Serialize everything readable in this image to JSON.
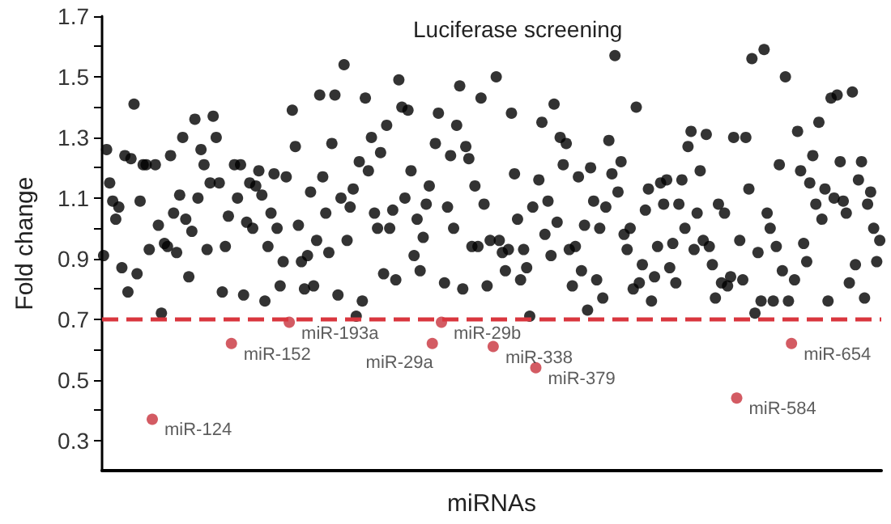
{
  "chart_data": {
    "type": "scatter",
    "title": "Luciferase screening",
    "xlabel": "miRNAs",
    "ylabel": "Fold change",
    "marker": "circle",
    "grid": false,
    "ylim": [
      0.2,
      1.7
    ],
    "yticks": [
      {
        "value": 0.3,
        "label": "0.3"
      },
      {
        "value": 0.4,
        "label": null
      },
      {
        "value": 0.5,
        "label": "0.5"
      },
      {
        "value": 0.6,
        "label": null
      },
      {
        "value": 0.7,
        "label": "0.7"
      },
      {
        "value": 0.8,
        "label": null
      },
      {
        "value": 0.9,
        "label": "0.9"
      },
      {
        "value": 1.0,
        "label": null
      },
      {
        "value": 1.1,
        "label": "1.1"
      },
      {
        "value": 1.2,
        "label": null
      },
      {
        "value": 1.3,
        "label": "1.3"
      },
      {
        "value": 1.4,
        "label": null
      },
      {
        "value": 1.5,
        "label": "1.5"
      },
      {
        "value": 1.6,
        "label": null
      },
      {
        "value": 1.7,
        "label": "1.7"
      }
    ],
    "categories": [
      null,
      null,
      null,
      null,
      null,
      null,
      null,
      null,
      null,
      null,
      null,
      null,
      null,
      null,
      null,
      null,
      null,
      null,
      null,
      null,
      null,
      null,
      null,
      null,
      null,
      null,
      null,
      null,
      null,
      null,
      null,
      null,
      null,
      null,
      null,
      null,
      null,
      null,
      null,
      null,
      null,
      null,
      null,
      null,
      null,
      null,
      null,
      null,
      null,
      null,
      null,
      null,
      null,
      null,
      null,
      null,
      null,
      null,
      null,
      null,
      null,
      null,
      null,
      null,
      null,
      null,
      null,
      null,
      null,
      null,
      null,
      null,
      null,
      null,
      null,
      null,
      null,
      null,
      null,
      null,
      null,
      null,
      null,
      null,
      null,
      null,
      null,
      null,
      null,
      null,
      null,
      null,
      null,
      null,
      null,
      null,
      null,
      null,
      null,
      null,
      null,
      null,
      null,
      null,
      null,
      null,
      null,
      null,
      null,
      null,
      null,
      null,
      null,
      null,
      null,
      null,
      null,
      null,
      null,
      null,
      null,
      null,
      null,
      null,
      null,
      null,
      null,
      null,
      null,
      null,
      null,
      null,
      null,
      null,
      null,
      null,
      null,
      null,
      null,
      null,
      null,
      null,
      null,
      null,
      null,
      null,
      null,
      null,
      null,
      null,
      null,
      null,
      null,
      null,
      null,
      null,
      null,
      null,
      null,
      null,
      null,
      null,
      null,
      null,
      null,
      null,
      null,
      null,
      null,
      null,
      null,
      null,
      null,
      null,
      null,
      null,
      null,
      null,
      null,
      null,
      null,
      null,
      null,
      null,
      null,
      null,
      null,
      null,
      null,
      null,
      null,
      null,
      null,
      null,
      null,
      null,
      null,
      null,
      null,
      null,
      null,
      null,
      null,
      null,
      null,
      null,
      null,
      null,
      null,
      null,
      null,
      null,
      null,
      null,
      null,
      null,
      null,
      null,
      null,
      null,
      null,
      null,
      null,
      null,
      null,
      null,
      null,
      null,
      null,
      null,
      null,
      null,
      null,
      null,
      null,
      null,
      null,
      null,
      null,
      null,
      null,
      null,
      null,
      null,
      null,
      null,
      null,
      null,
      null,
      null,
      null,
      null,
      null,
      null,
      null,
      null
    ],
    "series": [
      {
        "color": "#000000",
        "values": [
          0.91,
          1.26,
          1.15,
          1.09,
          1.03,
          1.07,
          0.87,
          1.24,
          0.79,
          1.23,
          1.41,
          0.85,
          1.09,
          1.21,
          1.21,
          0.93,
          null,
          1.21,
          1.01,
          0.72,
          0.95,
          0.94,
          1.24,
          1.05,
          0.92,
          1.11,
          1.3,
          1.03,
          0.84,
          0.99,
          1.36,
          1.1,
          1.26,
          1.21,
          0.93,
          1.15,
          1.37,
          1.3,
          1.15,
          0.79,
          0.94,
          1.04,
          null,
          1.21,
          1.1,
          1.21,
          0.78,
          1.02,
          1.15,
          1.0,
          1.14,
          1.19,
          1.11,
          0.76,
          0.94,
          1.05,
          1.18,
          1.0,
          0.81,
          0.89,
          1.17,
          null,
          1.39,
          1.27,
          1.01,
          0.89,
          0.8,
          0.91,
          1.12,
          0.81,
          0.96,
          1.44,
          1.17,
          1.05,
          0.92,
          1.28,
          1.44,
          0.78,
          1.1,
          1.54,
          0.96,
          1.07,
          1.13,
          0.71,
          1.22,
          0.76,
          1.43,
          1.19,
          1.3,
          1.05,
          1.0,
          1.25,
          0.85,
          1.34,
          1.0,
          1.06,
          0.83,
          1.49,
          1.4,
          1.1,
          1.39,
          1.19,
          0.91,
          1.03,
          0.86,
          0.97,
          1.08,
          1.14,
          null,
          1.28,
          1.38,
          null,
          0.82,
          1.07,
          1.24,
          1.0,
          1.34,
          1.47,
          0.8,
          1.27,
          1.23,
          0.94,
          1.14,
          0.94,
          1.43,
          1.08,
          0.81,
          0.96,
          null,
          1.5,
          0.96,
          0.92,
          0.86,
          0.93,
          1.38,
          1.18,
          1.03,
          0.83,
          0.93,
          0.87,
          0.71,
          1.07,
          null,
          1.16,
          1.35,
          0.98,
          1.09,
          0.91,
          1.41,
          1.02,
          1.3,
          1.21,
          1.28,
          0.93,
          0.81,
          0.94,
          1.17,
          0.86,
          1.01,
          0.73,
          1.2,
          1.09,
          0.83,
          1.0,
          0.77,
          1.07,
          1.29,
          1.18,
          1.57,
          1.12,
          1.22,
          0.98,
          0.93,
          1.0,
          0.8,
          1.4,
          0.82,
          0.88,
          1.06,
          1.13,
          0.76,
          0.84,
          0.94,
          1.15,
          1.08,
          1.16,
          0.87,
          0.95,
          0.82,
          1.08,
          1.16,
          1.0,
          1.27,
          1.32,
          0.93,
          1.05,
          1.19,
          0.96,
          1.31,
          0.94,
          0.88,
          0.77,
          1.08,
          0.82,
          1.05,
          0.81,
          0.84,
          1.3,
          null,
          0.96,
          0.83,
          1.3,
          1.13,
          1.56,
          0.72,
          0.92,
          0.76,
          1.59,
          1.05,
          1.0,
          0.76,
          0.94,
          1.21,
          0.86,
          1.5,
          0.76,
          null,
          0.83,
          1.32,
          1.19,
          0.95,
          0.89,
          1.15,
          1.24,
          1.08,
          1.35,
          1.03,
          1.13,
          0.76,
          1.43,
          1.1,
          1.44,
          1.22,
          1.09,
          1.05,
          0.82,
          1.45,
          0.88,
          1.16,
          1.22,
          0.77,
          1.08,
          1.12,
          1.0,
          0.89,
          0.96
        ]
      },
      {
        "color": "#c8323c",
        "values": [
          null,
          null,
          null,
          null,
          null,
          null,
          null,
          null,
          null,
          null,
          null,
          null,
          null,
          null,
          null,
          null,
          0.37,
          null,
          null,
          null,
          null,
          null,
          null,
          null,
          null,
          null,
          null,
          null,
          null,
          null,
          null,
          null,
          null,
          null,
          null,
          null,
          null,
          null,
          null,
          null,
          null,
          null,
          0.62,
          null,
          null,
          null,
          null,
          null,
          null,
          null,
          null,
          null,
          null,
          null,
          null,
          null,
          null,
          null,
          null,
          null,
          null,
          0.69,
          null,
          null,
          null,
          null,
          null,
          null,
          null,
          null,
          null,
          null,
          null,
          null,
          null,
          null,
          null,
          null,
          null,
          null,
          null,
          null,
          null,
          null,
          null,
          null,
          null,
          null,
          null,
          null,
          null,
          null,
          null,
          null,
          null,
          null,
          null,
          null,
          null,
          null,
          null,
          null,
          null,
          null,
          null,
          null,
          null,
          null,
          0.62,
          null,
          null,
          0.69,
          null,
          null,
          null,
          null,
          null,
          null,
          null,
          null,
          null,
          null,
          null,
          null,
          null,
          null,
          null,
          null,
          0.61,
          null,
          null,
          null,
          null,
          null,
          null,
          null,
          null,
          null,
          null,
          null,
          null,
          null,
          0.54,
          null,
          null,
          null,
          null,
          null,
          null,
          null,
          null,
          null,
          null,
          null,
          null,
          null,
          null,
          null,
          null,
          null,
          null,
          null,
          null,
          null,
          null,
          null,
          null,
          null,
          null,
          null,
          null,
          null,
          null,
          null,
          null,
          null,
          null,
          null,
          null,
          null,
          null,
          null,
          null,
          null,
          null,
          null,
          null,
          null,
          null,
          null,
          null,
          null,
          null,
          null,
          null,
          null,
          null,
          null,
          null,
          null,
          null,
          null,
          null,
          null,
          null,
          null,
          null,
          null,
          0.44,
          null,
          null,
          null,
          null,
          null,
          null,
          null,
          null,
          null,
          null,
          null,
          null,
          null,
          null,
          null,
          null,
          null,
          0.62,
          null,
          null,
          null,
          null,
          null,
          null,
          null,
          null,
          null,
          null,
          null,
          null,
          null,
          null,
          null,
          null,
          null,
          null,
          null,
          null,
          null,
          null,
          null,
          null,
          null,
          null,
          null,
          null,
          null
        ],
        "value_labels": [
          null,
          null,
          null,
          null,
          null,
          null,
          null,
          null,
          null,
          null,
          null,
          null,
          null,
          null,
          null,
          null,
          "miR-124",
          null,
          null,
          null,
          null,
          null,
          null,
          null,
          null,
          null,
          null,
          null,
          null,
          null,
          null,
          null,
          null,
          null,
          null,
          null,
          null,
          null,
          null,
          null,
          null,
          null,
          "miR-152",
          null,
          null,
          null,
          null,
          null,
          null,
          null,
          null,
          null,
          null,
          null,
          null,
          null,
          null,
          null,
          null,
          null,
          null,
          "miR-193a",
          null,
          null,
          null,
          null,
          null,
          null,
          null,
          null,
          null,
          null,
          null,
          null,
          null,
          null,
          null,
          null,
          null,
          null,
          null,
          null,
          null,
          null,
          null,
          null,
          null,
          null,
          null,
          null,
          null,
          null,
          null,
          null,
          null,
          null,
          null,
          null,
          null,
          null,
          null,
          null,
          null,
          null,
          null,
          null,
          null,
          null,
          "miR-29a",
          null,
          null,
          "miR-29b",
          null,
          null,
          null,
          null,
          null,
          null,
          null,
          null,
          null,
          null,
          null,
          null,
          null,
          null,
          null,
          null,
          "miR-338",
          null,
          null,
          null,
          null,
          null,
          null,
          null,
          null,
          null,
          null,
          null,
          null,
          null,
          "miR-379",
          null,
          null,
          null,
          null,
          null,
          null,
          null,
          null,
          null,
          null,
          null,
          null,
          null,
          null,
          null,
          null,
          null,
          null,
          null,
          null,
          null,
          null,
          null,
          null,
          null,
          null,
          null,
          null,
          null,
          null,
          null,
          null,
          null,
          null,
          null,
          null,
          null,
          null,
          null,
          null,
          null,
          null,
          null,
          null,
          null,
          null,
          null,
          null,
          null,
          null,
          null,
          null,
          null,
          null,
          null,
          null,
          null,
          null,
          null,
          null,
          null,
          null,
          null,
          null,
          null,
          "miR-584",
          null,
          null,
          null,
          null,
          null,
          null,
          null,
          null,
          null,
          null,
          null,
          null,
          null,
          null,
          null,
          null,
          null,
          "miR-654",
          null,
          null,
          null,
          null,
          null,
          null,
          null,
          null,
          null,
          null,
          null,
          null,
          null,
          null,
          null,
          null,
          null,
          null,
          null,
          null,
          null,
          null,
          null,
          null,
          null,
          null,
          null,
          null,
          null
        ]
      }
    ],
    "ref_lines": [
      {
        "axis": "y",
        "value": 0.7,
        "color": "#d9363e",
        "line_style": "dashed"
      }
    ]
  }
}
